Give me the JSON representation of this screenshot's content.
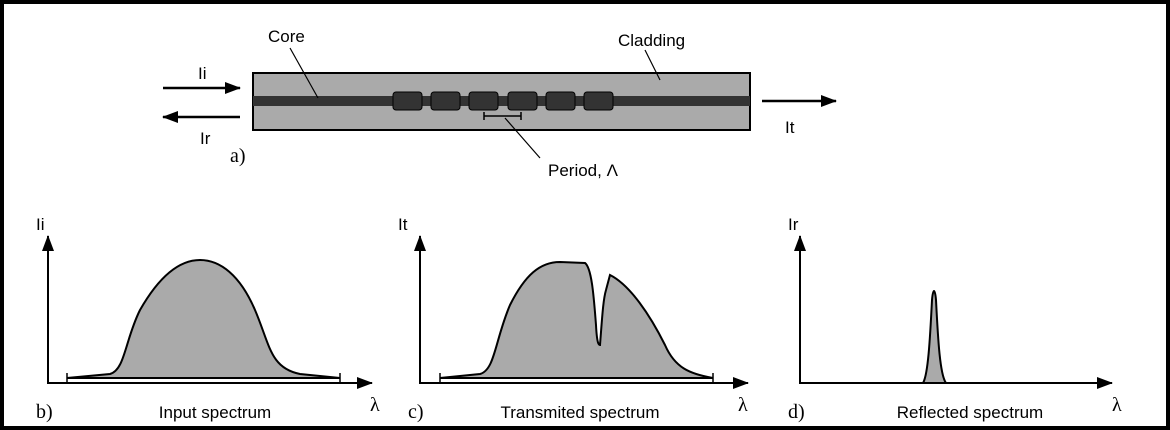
{
  "fiber": {
    "label": "a)",
    "core": "Core",
    "cladding": "Cladding",
    "input": "Ii",
    "reflected": "Ir",
    "transmitted": "It",
    "period": "Period, Λ"
  },
  "panels": [
    {
      "label": "b)",
      "y_axis": "Ii",
      "x_axis": "λ",
      "caption": "Input spectrum"
    },
    {
      "label": "c)",
      "y_axis": "It",
      "x_axis": "λ",
      "caption": "Transmited spectrum"
    },
    {
      "label": "d)",
      "y_axis": "Ir",
      "x_axis": "λ",
      "caption": "Reflected spectrum"
    }
  ]
}
